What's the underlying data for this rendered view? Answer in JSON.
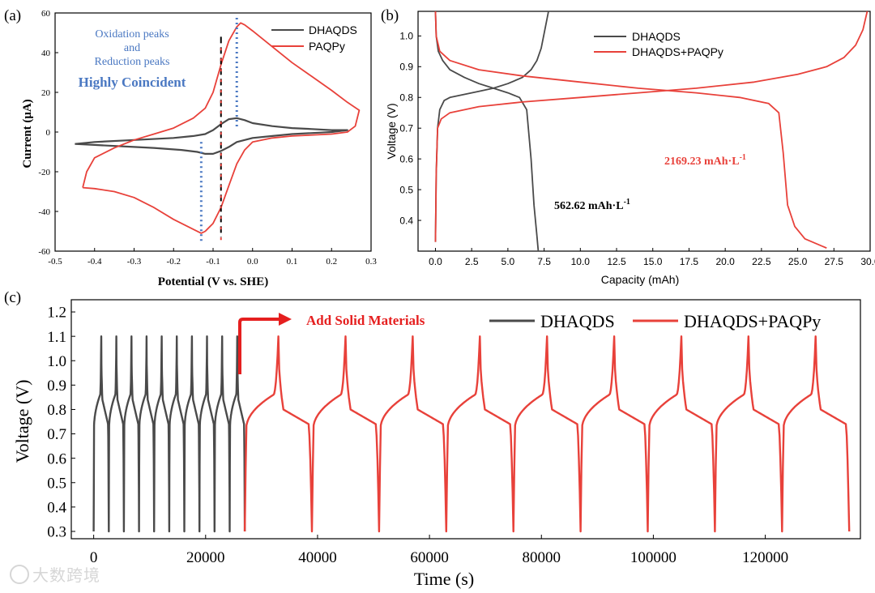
{
  "watermark": "大数跨境",
  "colors": {
    "dhaqds": "#4a4a4a",
    "paqpy": "#e8413a",
    "peak_line": "#4a78c2",
    "axis": "#000000"
  },
  "panel_a": {
    "label": "(a)",
    "annotation_line1": "Oxidation peaks",
    "annotation_line2": "and",
    "annotation_line3": "Reduction peaks",
    "annotation_bold": "Highly Coincident",
    "legend": [
      "DHAQDS",
      "PAQPy"
    ],
    "chart_data": {
      "type": "line",
      "title": "",
      "xlabel": "Potential (V vs. SHE)",
      "ylabel": "Current (μA)",
      "xlim": [
        -0.5,
        0.3
      ],
      "ylim": [
        -60,
        60
      ],
      "xticks": [
        -0.5,
        -0.4,
        -0.3,
        -0.2,
        -0.1,
        0.0,
        0.1,
        0.2,
        0.3
      ],
      "xtick_labels": [
        "-0.5",
        "-0.4",
        "-0.3",
        "-0.2",
        "-0.1",
        "0.0",
        "0.1",
        "0.2",
        "0.3"
      ],
      "yticks": [
        -60,
        -40,
        -20,
        0,
        20,
        40,
        60
      ],
      "ytick_labels": [
        "-60",
        "-40",
        "-20",
        "0",
        "20",
        "40",
        "60"
      ],
      "peak_markers": {
        "oxidation_peak_V": -0.04,
        "reduction_peak_V": -0.13,
        "dhaqds_peak_V": -0.08
      },
      "series": [
        {
          "name": "DHAQDS",
          "forward": [
            [
              -0.45,
              -6
            ],
            [
              -0.4,
              -5
            ],
            [
              -0.3,
              -4
            ],
            [
              -0.2,
              -3
            ],
            [
              -0.15,
              -2
            ],
            [
              -0.12,
              -1
            ],
            [
              -0.1,
              1
            ],
            [
              -0.08,
              4
            ],
            [
              -0.06,
              6.5
            ],
            [
              -0.04,
              7
            ],
            [
              -0.02,
              6
            ],
            [
              0.0,
              4.5
            ],
            [
              0.05,
              3
            ],
            [
              0.1,
              2
            ],
            [
              0.15,
              1.5
            ],
            [
              0.2,
              1
            ],
            [
              0.24,
              1
            ]
          ],
          "reverse": [
            [
              0.24,
              1
            ],
            [
              0.2,
              0
            ],
            [
              0.1,
              -1
            ],
            [
              0.05,
              -2
            ],
            [
              0.0,
              -3
            ],
            [
              -0.04,
              -5
            ],
            [
              -0.06,
              -7.5
            ],
            [
              -0.08,
              -9.5
            ],
            [
              -0.1,
              -11
            ],
            [
              -0.12,
              -11
            ],
            [
              -0.14,
              -10
            ],
            [
              -0.18,
              -9
            ],
            [
              -0.25,
              -8
            ],
            [
              -0.3,
              -7.5
            ],
            [
              -0.4,
              -6.5
            ],
            [
              -0.45,
              -6
            ]
          ]
        },
        {
          "name": "PAQPy",
          "forward": [
            [
              -0.43,
              -28
            ],
            [
              -0.42,
              -20
            ],
            [
              -0.4,
              -13
            ],
            [
              -0.35,
              -8
            ],
            [
              -0.3,
              -4
            ],
            [
              -0.25,
              -1
            ],
            [
              -0.2,
              2
            ],
            [
              -0.15,
              7
            ],
            [
              -0.12,
              12
            ],
            [
              -0.1,
              20
            ],
            [
              -0.08,
              34
            ],
            [
              -0.06,
              46
            ],
            [
              -0.04,
              53
            ],
            [
              -0.03,
              55
            ],
            [
              -0.02,
              54
            ],
            [
              0.0,
              51
            ],
            [
              0.05,
              43
            ],
            [
              0.1,
              35
            ],
            [
              0.15,
              28
            ],
            [
              0.2,
              21
            ],
            [
              0.24,
              15
            ],
            [
              0.27,
              11
            ]
          ],
          "reverse": [
            [
              0.27,
              11
            ],
            [
              0.26,
              3
            ],
            [
              0.24,
              0
            ],
            [
              0.2,
              -1
            ],
            [
              0.1,
              -2
            ],
            [
              0.05,
              -3
            ],
            [
              0.0,
              -5
            ],
            [
              -0.02,
              -9
            ],
            [
              -0.04,
              -16
            ],
            [
              -0.06,
              -27
            ],
            [
              -0.08,
              -38
            ],
            [
              -0.1,
              -46
            ],
            [
              -0.12,
              -50
            ],
            [
              -0.13,
              -51
            ],
            [
              -0.15,
              -49
            ],
            [
              -0.2,
              -44
            ],
            [
              -0.25,
              -38
            ],
            [
              -0.3,
              -33
            ],
            [
              -0.35,
              -30
            ],
            [
              -0.4,
              -28.5
            ],
            [
              -0.43,
              -28
            ]
          ]
        }
      ]
    }
  },
  "panel_b": {
    "label": "(b)",
    "annotation_dhaqds": "562.62 mAh·L",
    "annotation_paqpy": "2169.23 mAh·L",
    "annotation_sup": "-1",
    "legend": [
      "DHAQDS",
      "DHAQDS+PAQPy"
    ],
    "chart_data": {
      "type": "line",
      "title": "",
      "xlabel": "Capacity (mAh)",
      "ylabel": "Voltage (V)",
      "xlim": [
        -1.2,
        30.0
      ],
      "ylim": [
        0.3,
        1.08
      ],
      "xticks": [
        0,
        2.5,
        5,
        7.5,
        10,
        12.5,
        15,
        17.5,
        20,
        22.5,
        25,
        27.5,
        30
      ],
      "xtick_labels": [
        "0.0",
        "2.5",
        "5.0",
        "7.5",
        "10.0",
        "12.5",
        "15.0",
        "17.5",
        "20.0",
        "22.5",
        "25.0",
        "27.5",
        "30.0"
      ],
      "yticks": [
        0.4,
        0.5,
        0.6,
        0.7,
        0.8,
        0.9,
        1.0
      ],
      "ytick_labels": [
        "0.4",
        "0.5",
        "0.6",
        "0.7",
        "0.8",
        "0.9",
        "1.0"
      ],
      "series": [
        {
          "name": "DHAQDS charge",
          "legend": "DHAQDS",
          "points": [
            [
              0,
              0.33
            ],
            [
              0.05,
              0.55
            ],
            [
              0.15,
              0.7
            ],
            [
              0.3,
              0.76
            ],
            [
              0.6,
              0.79
            ],
            [
              1,
              0.8
            ],
            [
              2,
              0.81
            ],
            [
              3,
              0.82
            ],
            [
              4,
              0.83
            ],
            [
              5,
              0.845
            ],
            [
              6,
              0.865
            ],
            [
              6.6,
              0.89
            ],
            [
              7.0,
              0.92
            ],
            [
              7.3,
              0.96
            ],
            [
              7.55,
              1.02
            ],
            [
              7.8,
              1.08
            ]
          ]
        },
        {
          "name": "DHAQDS discharge",
          "legend": "DHAQDS",
          "points": [
            [
              0,
              1.08
            ],
            [
              0.05,
              1.0
            ],
            [
              0.2,
              0.95
            ],
            [
              0.5,
              0.92
            ],
            [
              1,
              0.89
            ],
            [
              2,
              0.865
            ],
            [
              3,
              0.845
            ],
            [
              4,
              0.83
            ],
            [
              5,
              0.815
            ],
            [
              5.8,
              0.8
            ],
            [
              6.3,
              0.76
            ],
            [
              6.6,
              0.6
            ],
            [
              6.8,
              0.45
            ],
            [
              7.0,
              0.35
            ],
            [
              7.1,
              0.3
            ]
          ]
        },
        {
          "name": "DHAQDS+PAQPy charge",
          "legend": "DHAQDS+PAQPy",
          "points": [
            [
              0,
              0.33
            ],
            [
              0.05,
              0.55
            ],
            [
              0.15,
              0.7
            ],
            [
              0.4,
              0.73
            ],
            [
              1,
              0.75
            ],
            [
              3,
              0.77
            ],
            [
              6,
              0.785
            ],
            [
              10,
              0.8
            ],
            [
              14,
              0.815
            ],
            [
              18,
              0.83
            ],
            [
              22,
              0.85
            ],
            [
              25,
              0.875
            ],
            [
              27,
              0.9
            ],
            [
              28.2,
              0.93
            ],
            [
              29,
              0.97
            ],
            [
              29.5,
              1.02
            ],
            [
              29.8,
              1.08
            ]
          ]
        },
        {
          "name": "DHAQDS+PAQPy discharge",
          "legend": "DHAQDS+PAQPy",
          "points": [
            [
              0,
              1.08
            ],
            [
              0.05,
              1.0
            ],
            [
              0.3,
              0.95
            ],
            [
              1,
              0.92
            ],
            [
              3,
              0.89
            ],
            [
              6,
              0.87
            ],
            [
              10,
              0.85
            ],
            [
              14,
              0.83
            ],
            [
              18,
              0.815
            ],
            [
              21,
              0.8
            ],
            [
              23,
              0.78
            ],
            [
              23.7,
              0.75
            ],
            [
              24.0,
              0.62
            ],
            [
              24.3,
              0.45
            ],
            [
              24.8,
              0.38
            ],
            [
              25.5,
              0.34
            ],
            [
              27,
              0.31
            ]
          ]
        }
      ]
    }
  },
  "panel_c": {
    "label": "(c)",
    "arrow_label": "Add Solid Materials",
    "legend": [
      "DHAQDS",
      "DHAQDS+PAQPy"
    ],
    "chart_data": {
      "type": "line",
      "title": "",
      "xlabel": "Time (s)",
      "ylabel": "Voltage (V)",
      "xlim": [
        -4000,
        137000
      ],
      "ylim": [
        0.27,
        1.25
      ],
      "xticks": [
        0,
        20000,
        40000,
        60000,
        80000,
        100000,
        120000
      ],
      "xtick_labels": [
        "0",
        "20000",
        "40000",
        "60000",
        "80000",
        "100000",
        "120000"
      ],
      "yticks": [
        0.3,
        0.4,
        0.5,
        0.6,
        0.7,
        0.8,
        0.9,
        1.0,
        1.1,
        1.2
      ],
      "ytick_labels": [
        "0.3",
        "0.4",
        "0.5",
        "0.6",
        "0.7",
        "0.8",
        "0.9",
        "1.0",
        "1.1",
        "1.2"
      ],
      "series": [
        {
          "name": "DHAQDS",
          "cycles": 10,
          "t_start": 0,
          "t_end": 27000,
          "v_min": 0.3,
          "v_max": 1.1,
          "plateau_charge": 0.86,
          "plateau_discharge": 0.84
        },
        {
          "name": "DHAQDS+PAQPy",
          "cycles": 9,
          "t_start": 27000,
          "t_end": 135000,
          "v_min": 0.3,
          "v_max": 1.1,
          "plateau_charge": 0.86,
          "plateau_discharge": 0.8
        }
      ]
    }
  }
}
